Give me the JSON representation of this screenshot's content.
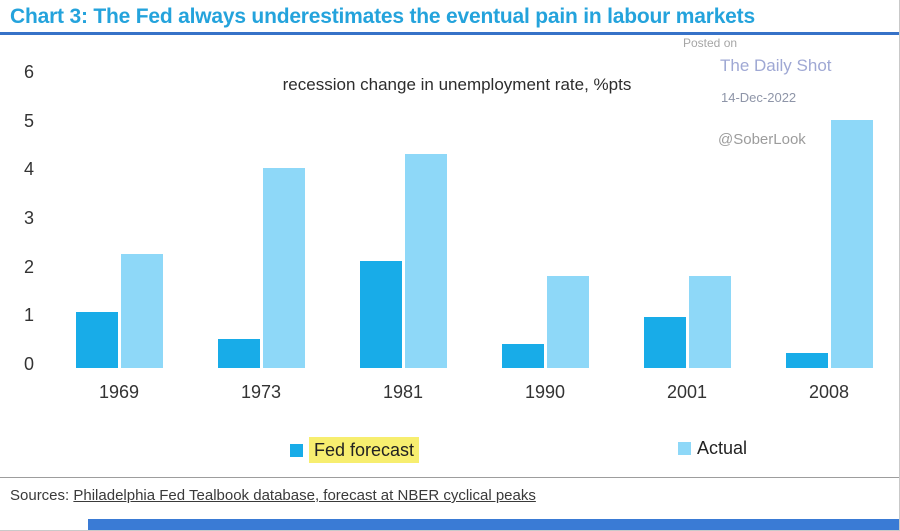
{
  "title": "Chart 3: The Fed always underestimates the eventual pain in labour markets",
  "watermark": {
    "posted_on": "Posted on",
    "site": "The Daily Shot",
    "date": "14-Dec-2022",
    "handle": "@SoberLook"
  },
  "chart_data": {
    "type": "bar",
    "title": "recession change in unemployment rate, %pts",
    "categories": [
      "1969",
      "1973",
      "1981",
      "1990",
      "2001",
      "2008"
    ],
    "series": [
      {
        "name": "Fed forecast",
        "color": "#18ACE8",
        "values": [
          1.15,
          0.6,
          2.2,
          0.5,
          1.05,
          0.3
        ]
      },
      {
        "name": "Actual",
        "color": "#8ED8F8",
        "values": [
          2.35,
          4.1,
          4.4,
          1.9,
          1.9,
          5.1
        ]
      }
    ],
    "ylim": [
      0,
      6
    ],
    "yticks": [
      0,
      1,
      2,
      3,
      4,
      5,
      6
    ],
    "grid": false,
    "legend_position": "bottom"
  },
  "sources": {
    "prefix": "Sources: ",
    "text": "Philadelphia Fed Tealbook database, forecast at NBER cyclical peaks"
  },
  "colors": {
    "title": "#24A3DC",
    "rule": "#3672C8",
    "fed_forecast": "#18ACE8",
    "actual": "#8ED8F8",
    "legend_highlight": "#F7EE6F",
    "bottom_bar": "#3A7BD5",
    "watermark_posted": "#A6A6A6",
    "watermark_site": "#9FA8D4",
    "watermark_date": "#8E95A8",
    "watermark_handle": "#9C9C9C"
  }
}
